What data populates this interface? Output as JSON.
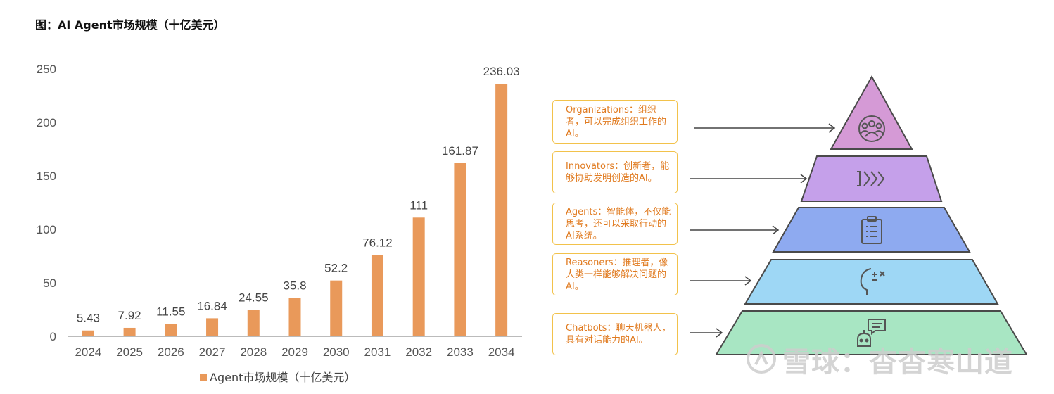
{
  "figure_title": "图：AI Agent市场规模（十亿美元）",
  "chart_data": {
    "type": "bar",
    "categories": [
      "2024",
      "2025",
      "2026",
      "2027",
      "2028",
      "2029",
      "2030",
      "2031",
      "2032",
      "2033",
      "2034"
    ],
    "series": [
      {
        "name": "Agent市场规模（十亿美元）",
        "values": [
          5.43,
          7.92,
          11.55,
          16.84,
          24.55,
          35.8,
          52.2,
          76.12,
          111,
          161.87,
          236.03
        ]
      }
    ],
    "value_labels": [
      "5.43",
      "7.92",
      "11.55",
      "16.84",
      "24.55",
      "35.8",
      "52.2",
      "76.12",
      "111",
      "161.87",
      "236.03"
    ],
    "ylim": [
      0,
      250
    ],
    "yticks": [
      0,
      50,
      100,
      150,
      200,
      250
    ],
    "grid": false,
    "legend_position": "bottom-center",
    "bar_color": "#e9995a"
  },
  "pyramid": {
    "levels": [
      {
        "callout": "Organizations：组织者，可以完成组织工作的AI。",
        "icon": "people-group-icon",
        "color": "#d59ad6"
      },
      {
        "callout": "Innovators：创新者，能够协助发明创造的AI。",
        "icon": "chevrons-right-icon",
        "color": "#c5a0ea"
      },
      {
        "callout": "Agents：智能体，不仅能思考，还可以采取行动的AI系统。",
        "icon": "clipboard-icon",
        "color": "#8eaaf0"
      },
      {
        "callout": "Reasoners：推理者，像人类一样能够解决问题的AI。",
        "icon": "head-thinking-icon",
        "color": "#9ed7f5"
      },
      {
        "callout": "Chatbots：聊天机器人，具有对话能力的AI。",
        "icon": "chat-robot-icon",
        "color": "#a8e6c3"
      }
    ]
  },
  "watermark": "雪球：杳杳寒山道"
}
